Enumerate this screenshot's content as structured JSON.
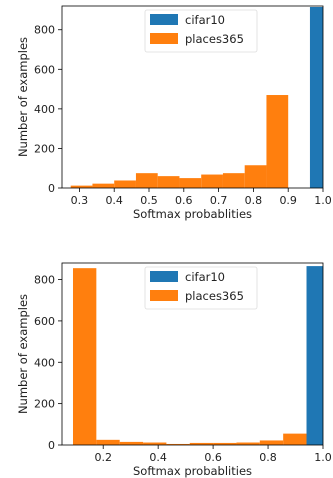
{
  "colors": {
    "series_0": "#1f77b4",
    "series_1": "#ff7f0e"
  },
  "chart_data": [
    {
      "type": "bar",
      "xlabel": "Softmax probablities",
      "ylabel": "Number of examples",
      "xlim": [
        0.25,
        1.0
      ],
      "ylim": [
        0,
        920
      ],
      "xticks": [
        0.3,
        0.4,
        0.5,
        0.6,
        0.7,
        0.8,
        0.9,
        1.0
      ],
      "xtick_labels": [
        "0.3",
        "0.4",
        "0.5",
        "0.6",
        "0.7",
        "0.8",
        "0.9",
        "1.0"
      ],
      "yticks": [
        0,
        200,
        400,
        600,
        800
      ],
      "ytick_labels": [
        "0",
        "200",
        "400",
        "600",
        "800"
      ],
      "legend_position": "top-center",
      "bin_edges": [
        0.275,
        0.3375,
        0.4,
        0.4625,
        0.525,
        0.5875,
        0.65,
        0.7125,
        0.775,
        0.8375,
        0.9,
        0.9625,
        1.0
      ],
      "series": [
        {
          "name": "cifar10",
          "values": [
            0,
            0,
            0,
            0,
            0,
            0,
            0,
            0,
            0,
            0,
            0,
            915
          ]
        },
        {
          "name": "places365",
          "values": [
            12,
            22,
            38,
            75,
            60,
            50,
            68,
            75,
            115,
            470,
            0,
            0
          ]
        }
      ]
    },
    {
      "type": "bar",
      "xlabel": "Softmax probablities",
      "ylabel": "Number of examples",
      "xlim": [
        0.05,
        1.0
      ],
      "ylim": [
        0,
        880
      ],
      "xticks": [
        0.2,
        0.4,
        0.6,
        0.8,
        1.0
      ],
      "xtick_labels": [
        "0.2",
        "0.4",
        "0.6",
        "0.8",
        "1.0"
      ],
      "yticks": [
        0,
        200,
        400,
        600,
        800
      ],
      "ytick_labels": [
        "0",
        "200",
        "400",
        "600",
        "800"
      ],
      "legend_position": "top-center",
      "bin_edges": [
        0.09,
        0.175,
        0.26,
        0.345,
        0.43,
        0.515,
        0.6,
        0.685,
        0.77,
        0.855,
        0.94,
        1.0
      ],
      "series": [
        {
          "name": "cifar10",
          "values": [
            0,
            0,
            0,
            0,
            0,
            0,
            0,
            0,
            0,
            0,
            865
          ]
        },
        {
          "name": "places365",
          "values": [
            855,
            25,
            15,
            12,
            5,
            10,
            10,
            12,
            22,
            55,
            0
          ]
        }
      ]
    }
  ]
}
